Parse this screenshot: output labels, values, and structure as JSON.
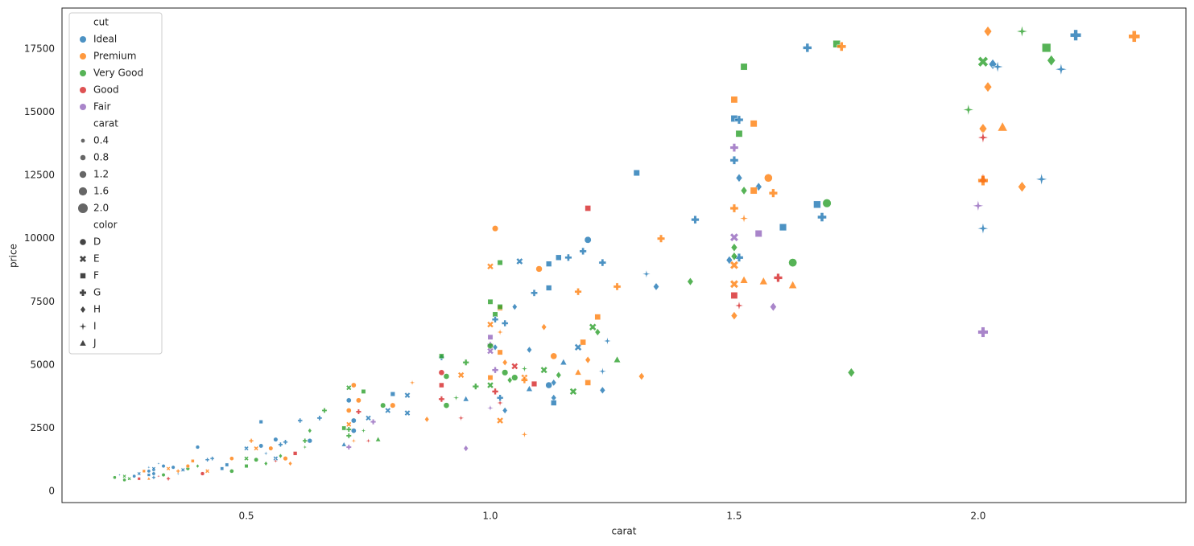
{
  "chart_data": {
    "type": "scatter",
    "xlabel": "carat",
    "ylabel": "price",
    "xlim": [
      0.122,
      2.426
    ],
    "ylim": [
      -445,
      19123
    ],
    "xticks": [
      0.5,
      {
        "value": 1,
        "label": "1.0"
      },
      1.5,
      {
        "value": 2,
        "label": "2.0"
      }
    ],
    "yticks": [
      0,
      2500,
      5000,
      7500,
      10000,
      12500,
      15000,
      17500
    ],
    "grid": false,
    "legend": "upper left",
    "hue": {
      "title": "cut",
      "levels": [
        {
          "name": "Ideal",
          "color": "#1f77b4"
        },
        {
          "name": "Premium",
          "color": "#ff7f0e"
        },
        {
          "name": "Very Good",
          "color": "#2ca02c"
        },
        {
          "name": "Good",
          "color": "#d62728"
        },
        {
          "name": "Fair",
          "color": "#9467bd"
        }
      ]
    },
    "size": {
      "title": "carat",
      "levels": [
        0.4,
        0.8,
        1.2,
        1.6,
        {
          "value": 2,
          "label": "2.0"
        }
      ]
    },
    "style": {
      "title": "color",
      "levels": [
        "D",
        "E",
        "F",
        "G",
        "H",
        "I",
        "J"
      ],
      "markers": [
        "circle",
        "x",
        "square",
        "plus",
        "diamond",
        "star",
        "triangle"
      ]
    },
    "x": [
      1.65,
      1.71,
      1.72,
      2.02,
      2.09,
      2.2,
      2.32,
      2.14,
      2.01,
      2.03,
      2.04,
      2.15,
      2.17,
      2.02,
      1.52,
      1.98,
      2.01,
      2.05,
      2.01,
      2.01,
      2.01,
      2.09,
      2.13,
      2.0,
      2.01,
      2.01,
      1.74,
      1.5,
      1.5,
      1.51,
      1.51,
      1.54,
      1.5,
      1.5,
      1.51,
      1.55,
      1.52,
      1.54,
      1.57,
      1.58,
      1.5,
      1.52,
      1.6,
      1.55,
      1.67,
      1.69,
      1.68,
      1.5,
      1.5,
      1.49,
      1.51,
      1.5,
      1.5,
      1.52,
      1.56,
      1.59,
      1.62,
      1.62,
      1.5,
      1.5,
      1.51,
      1.58,
      1.5,
      1.3,
      1.42,
      1.35,
      1.34,
      1.41,
      1.32,
      1.26,
      1.2,
      1.2,
      1.19,
      1.23,
      1.16,
      1.14,
      1.12,
      1.06,
      1.02,
      1.0,
      1.01,
      1.1,
      1.12,
      1.09,
      1.18,
      1.05,
      1.02,
      1.02,
      1.01,
      1.01,
      1.0,
      1.0,
      1.03,
      1.02,
      1.0,
      1.0,
      1.0,
      1.01,
      1.0,
      1.02,
      1.03,
      1.03,
      1.05,
      1.05,
      1.04,
      1.07,
      1.07,
      1.07,
      1.01,
      1.0,
      1.0,
      1.01,
      1.02,
      1.0,
      1.02,
      1.03,
      1.02,
      1.07,
      1.08,
      1.09,
      1.12,
      1.13,
      1.13,
      1.13,
      1.13,
      1.15,
      1.14,
      1.11,
      1.08,
      1.11,
      1.18,
      1.19,
      1.2,
      1.18,
      1.2,
      1.22,
      1.21,
      1.22,
      1.24,
      1.23,
      1.23,
      1.17,
      1.26,
      1.31,
      0.9,
      0.9,
      0.9,
      0.91,
      0.9,
      0.9,
      0.91,
      0.95,
      0.97,
      0.94,
      0.95,
      0.93,
      0.94,
      0.95,
      0.84,
      0.83,
      0.83,
      0.8,
      0.8,
      0.78,
      0.79,
      0.87,
      0.76,
      0.74,
      0.75,
      0.73,
      0.72,
      0.71,
      0.71,
      0.74,
      0.71,
      0.73,
      0.72,
      0.71,
      0.71,
      0.71,
      0.72,
      0.75,
      0.77,
      0.71,
      0.7,
      0.7,
      0.72,
      0.66,
      0.65,
      0.61,
      0.63,
      0.62,
      0.62,
      0.63,
      0.6,
      0.58,
      0.57,
      0.56,
      0.53,
      0.53,
      0.52,
      0.52,
      0.5,
      0.5,
      0.5,
      0.51,
      0.54,
      0.55,
      0.54,
      0.56,
      0.56,
      0.57,
      0.58,
      0.59,
      0.47,
      0.46,
      0.47,
      0.45,
      0.42,
      0.43,
      0.42,
      0.41,
      0.4,
      0.4,
      0.39,
      0.38,
      0.38,
      0.37,
      0.36,
      0.35,
      0.34,
      0.33,
      0.32,
      0.32,
      0.31,
      0.31,
      0.31,
      0.31,
      0.3,
      0.3,
      0.3,
      0.3,
      0.29,
      0.28,
      0.27,
      0.26,
      0.25,
      0.25,
      0.24,
      0.23,
      0.33,
      0.34,
      0.28,
      0.36
    ],
    "y": [
      17550,
      17700,
      17600,
      18200,
      18200,
      18050,
      18000,
      17550,
      17000,
      16900,
      16800,
      17050,
      16700,
      16000,
      16800,
      15100,
      14350,
      14400,
      14000,
      12350,
      12300,
      12050,
      12350,
      11300,
      10400,
      6300,
      4700,
      15500,
      14750,
      14700,
      14150,
      14550,
      13600,
      13100,
      12400,
      12050,
      11900,
      11900,
      12400,
      11800,
      11200,
      10800,
      10450,
      10200,
      11350,
      11400,
      10850,
      10050,
      9650,
      9150,
      9250,
      9300,
      8950,
      8350,
      8300,
      8450,
      8150,
      9050,
      8200,
      7750,
      7350,
      7300,
      6950,
      12600,
      10750,
      10000,
      8100,
      8300,
      8600,
      8100,
      9950,
      11200,
      9500,
      9050,
      9250,
      9250,
      9000,
      9100,
      9050,
      8900,
      10400,
      8800,
      8050,
      7850,
      7900,
      7300,
      7250,
      7300,
      7000,
      6800,
      6600,
      7500,
      6650,
      6300,
      6100,
      5800,
      5750,
      5700,
      5550,
      5500,
      5100,
      4700,
      4500,
      4950,
      4400,
      4850,
      4500,
      4400,
      4800,
      4500,
      4200,
      3950,
      3500,
      3300,
      3700,
      3200,
      2800,
      2250,
      4050,
      4250,
      4200,
      4300,
      3700,
      3500,
      5350,
      5100,
      4600,
      4800,
      5600,
      6500,
      5700,
      5900,
      5200,
      4700,
      4300,
      6900,
      6500,
      6300,
      5950,
      4750,
      4000,
      3950,
      5200,
      4550,
      5300,
      5350,
      4700,
      4550,
      4200,
      3650,
      3400,
      5100,
      4150,
      4600,
      3650,
      3700,
      2900,
      1700,
      4300,
      3800,
      3100,
      3850,
      3400,
      3400,
      3200,
      2850,
      2750,
      2400,
      2900,
      3600,
      4200,
      4100,
      3600,
      3950,
      3200,
      3150,
      2800,
      2650,
      2450,
      2200,
      2000,
      2000,
      2050,
      1750,
      1850,
      2500,
      2400,
      3200,
      2900,
      2800,
      2400,
      2000,
      1750,
      2000,
      1500,
      1950,
      1850,
      2050,
      2750,
      1800,
      1700,
      1250,
      1700,
      1300,
      1000,
      2000,
      1100,
      1700,
      1500,
      1300,
      1200,
      1400,
      1300,
      1100,
      1300,
      1050,
      800,
      900,
      1250,
      1300,
      800,
      700,
      1750,
      1000,
      1200,
      900,
      1000,
      850,
      700,
      950,
      900,
      1000,
      1100,
      600,
      850,
      900,
      700,
      550,
      800,
      650,
      500,
      950,
      800,
      500,
      600,
      500,
      600,
      450,
      650,
      550,
      650,
      500,
      700,
      800
    ],
    "cut": [
      "Ideal",
      "Very Good",
      "Premium",
      "Premium",
      "Very Good",
      "Ideal",
      "Premium",
      "Very Good",
      "Very Good",
      "Ideal",
      "Ideal",
      "Very Good",
      "Ideal",
      "Premium",
      "Very Good",
      "Very Good",
      "Premium",
      "Premium",
      "Good",
      "Good",
      "Premium",
      "Premium",
      "Ideal",
      "Fair",
      "Ideal",
      "Fair",
      "Very Good",
      "Premium",
      "Ideal",
      "Ideal",
      "Very Good",
      "Premium",
      "Fair",
      "Ideal",
      "Ideal",
      "Ideal",
      "Very Good",
      "Premium",
      "Premium",
      "Premium",
      "Premium",
      "Premium",
      "Ideal",
      "Fair",
      "Ideal",
      "Very Good",
      "Ideal",
      "Fair",
      "Very Good",
      "Ideal",
      "Ideal",
      "Very Good",
      "Premium",
      "Premium",
      "Premium",
      "Good",
      "Premium",
      "Very Good",
      "Premium",
      "Good",
      "Good",
      "Fair",
      "Premium",
      "Ideal",
      "Ideal",
      "Premium",
      "Ideal",
      "Very Good",
      "Ideal",
      "Premium",
      "Ideal",
      "Good",
      "Ideal",
      "Ideal",
      "Ideal",
      "Ideal",
      "Ideal",
      "Ideal",
      "Very Good",
      "Premium",
      "Premium",
      "Premium",
      "Ideal",
      "Ideal",
      "Premium",
      "Ideal",
      "Premium",
      "Very Good",
      "Very Good",
      "Ideal",
      "Premium",
      "Very Good",
      "Ideal",
      "Premium",
      "Fair",
      "Fair",
      "Very Good",
      "Ideal",
      "Fair",
      "Premium",
      "Premium",
      "Very Good",
      "Very Good",
      "Good",
      "Very Good",
      "Very Good",
      "Premium",
      "Premium",
      "Fair",
      "Premium",
      "Very Good",
      "Good",
      "Good",
      "Fair",
      "Ideal",
      "Ideal",
      "Premium",
      "Premium",
      "Ideal",
      "Good",
      "Ideal",
      "Ideal",
      "Ideal",
      "Ideal",
      "Premium",
      "Ideal",
      "Very Good",
      "Very Good",
      "Ideal",
      "Premium",
      "Ideal",
      "Premium",
      "Premium",
      "Premium",
      "Premium",
      "Premium",
      "Very Good",
      "Very Good",
      "Ideal",
      "Ideal",
      "Ideal",
      "Very Good",
      "Very Good",
      "Premium",
      "Ideal",
      "Very Good",
      "Good",
      "Very Good",
      "Good",
      "Good",
      "Very Good",
      "Very Good",
      "Very Good",
      "Premium",
      "Ideal",
      "Very Good",
      "Good",
      "Fair",
      "Premium",
      "Ideal",
      "Ideal",
      "Ideal",
      "Premium",
      "Very Good",
      "Ideal",
      "Premium",
      "Fair",
      "Very Good",
      "Ideal",
      "Premium",
      "Premium",
      "Very Good",
      "Ideal",
      "Very Good",
      "Premium",
      "Good",
      "Ideal",
      "Premium",
      "Very Good",
      "Very Good",
      "Premium",
      "Good",
      "Very Good",
      "Fair",
      "Ideal",
      "Very Good",
      "Ideal",
      "Very Good",
      "Ideal",
      "Ideal",
      "Very Good",
      "Very Good",
      "Very Good",
      "Ideal",
      "Good",
      "Ideal",
      "Ideal",
      "Ideal",
      "Ideal",
      "Ideal",
      "Premium",
      "Very Good",
      "Ideal",
      "Very Good",
      "Very Good",
      "Premium",
      "Very Good",
      "Premium",
      "Ideal",
      "Ideal",
      "Good",
      "Very Good",
      "Premium",
      "Premium",
      "Premium",
      "Ideal",
      "Very Good",
      "Ideal",
      "Ideal",
      "Ideal",
      "Premium",
      "Good",
      "Ideal",
      "Very Good",
      "Premium",
      "Very Good",
      "Premium",
      "Ideal",
      "Ideal",
      "Ideal",
      "Premium",
      "Ideal",
      "Ideal",
      "Good",
      "Ideal",
      "Ideal",
      "Ideal",
      "Ideal",
      "Ideal",
      "Ideal",
      "Premium",
      "Ideal",
      "Premium",
      "Good",
      "Ideal",
      "Very Good",
      "Very Good",
      "Very Good",
      "Ideal",
      "Very Good",
      "Very Good",
      "Good",
      "Ideal",
      "Premium"
    ],
    "color": [
      "G",
      "F",
      "G",
      "H",
      "I",
      "G",
      "G",
      "F",
      "E",
      "H",
      "I",
      "H",
      "I",
      "H",
      "F",
      "I",
      "H",
      "J",
      "I",
      "J",
      "G",
      "H",
      "I",
      "I",
      "I",
      "G",
      "H",
      "F",
      "F",
      "G",
      "F",
      "F",
      "G",
      "G",
      "H",
      "H",
      "H",
      "F",
      "D",
      "G",
      "G",
      "I",
      "F",
      "F",
      "F",
      "D",
      "G",
      "E",
      "H",
      "H",
      "G",
      "H",
      "E",
      "J",
      "J",
      "G",
      "J",
      "D",
      "E",
      "F",
      "I",
      "H",
      "H",
      "F",
      "G",
      "G",
      "H",
      "H",
      "I",
      "G",
      "D",
      "F",
      "G",
      "G",
      "G",
      "F",
      "F",
      "E",
      "F",
      "E",
      "D",
      "D",
      "F",
      "G",
      "G",
      "H",
      "F",
      "F",
      "F",
      "G",
      "E",
      "F",
      "G",
      "I",
      "F",
      "G",
      "D",
      "H",
      "E",
      "F",
      "H",
      "D",
      "D",
      "E",
      "H",
      "I",
      "E",
      "G",
      "G",
      "F",
      "E",
      "G",
      "I",
      "I",
      "G",
      "H",
      "E",
      "I",
      "J",
      "F",
      "D",
      "H",
      "H",
      "F",
      "D",
      "J",
      "H",
      "E",
      "H",
      "H",
      "E",
      "F",
      "H",
      "J",
      "F",
      "F",
      "E",
      "H",
      "I",
      "I",
      "H",
      "E",
      "J",
      "H",
      "G",
      "F",
      "D",
      "D",
      "F",
      "G",
      "D",
      "G",
      "G",
      "E",
      "J",
      "I",
      "I",
      "H",
      "I",
      "E",
      "E",
      "F",
      "D",
      "D",
      "E",
      "H",
      "G",
      "I",
      "E",
      "D",
      "D",
      "E",
      "D",
      "F",
      "D",
      "G",
      "D",
      "E",
      "G",
      "G",
      "I",
      "I",
      "J",
      "G",
      "J",
      "F",
      "D",
      "G",
      "G",
      "G",
      "H",
      "G",
      "I",
      "D",
      "F",
      "G",
      "G",
      "D",
      "F",
      "D",
      "E",
      "D",
      "E",
      "E",
      "F",
      "G",
      "H",
      "D",
      "I",
      "E",
      "I",
      "H",
      "D",
      "H",
      "D",
      "F",
      "D",
      "F",
      "G",
      "G",
      "E",
      "D",
      "D",
      "H",
      "F",
      "D",
      "D",
      "E",
      "I",
      "D",
      "E",
      "D",
      "I",
      "I",
      "D",
      "E",
      "D",
      "G",
      "D",
      "F",
      "J",
      "I",
      "F",
      "F",
      "D",
      "E",
      "E",
      "D",
      "I",
      "D",
      "D",
      "G",
      "E",
      "G"
    ]
  }
}
